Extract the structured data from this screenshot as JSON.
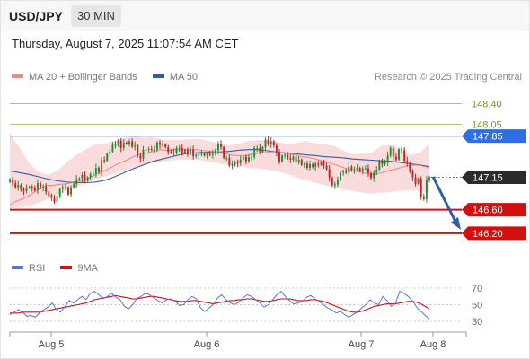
{
  "header": {
    "symbol": "USD/JPY",
    "timeframe": "30 MIN",
    "datetime": "Thursday, August 7, 2025 11:07:54 AM CET",
    "credit": "Research © 2025 Trading Central"
  },
  "colors": {
    "candle_up": "#1c8f34",
    "candle_down": "#c62020",
    "bollinger_fill": "#f9d0d0",
    "ma20": "#f08a8a",
    "ma50": "#2e5ea8",
    "green_level": "#a5c97a",
    "resistance": "#2f6fe0",
    "support": "#d31010",
    "rsi": "#5577d4",
    "rsi_ma": "#d31010",
    "arrow": "#2e5ea8"
  },
  "chart_data": [
    {
      "type": "candlestick",
      "title": "USD/JPY",
      "legend": [
        {
          "label": "MA 20 + Bollinger Bands",
          "color": "#f08a8a"
        },
        {
          "label": "MA 50",
          "color": "#2e5ea8"
        }
      ],
      "ylim": [
        146.0,
        148.53
      ],
      "x_ticks": [
        "Aug 5",
        "Aug 6",
        "Aug 7",
        "Aug 8"
      ],
      "levels": [
        {
          "value": 148.4,
          "label": "148.40",
          "kind": "green"
        },
        {
          "value": 148.05,
          "label": "148.05",
          "kind": "green"
        },
        {
          "value": 147.85,
          "label": "147.85",
          "kind": "resistance"
        },
        {
          "value": 147.15,
          "label": "147.15",
          "kind": "current"
        },
        {
          "value": 146.6,
          "label": "146.60",
          "kind": "support"
        },
        {
          "value": 146.2,
          "label": "146.20",
          "kind": "support"
        }
      ],
      "projection": {
        "from": 147.16,
        "to": 146.2
      },
      "closes": [
        147.12,
        147.05,
        146.98,
        147.02,
        146.94,
        146.92,
        146.97,
        146.99,
        146.96,
        146.93,
        147.05,
        146.98,
        146.99,
        146.9,
        146.84,
        146.8,
        146.73,
        146.83,
        146.95,
        146.98,
        146.98,
        146.86,
        146.98,
        147.03,
        147.12,
        147.13,
        147.19,
        147.09,
        147.15,
        147.2,
        147.21,
        147.31,
        147.24,
        147.44,
        147.43,
        147.55,
        147.59,
        147.7,
        147.7,
        147.77,
        147.65,
        147.74,
        147.72,
        147.76,
        147.67,
        147.69,
        147.52,
        147.47,
        147.62,
        147.62,
        147.63,
        147.62,
        147.62,
        147.74,
        147.7,
        147.71,
        147.66,
        147.58,
        147.57,
        147.57,
        147.65,
        147.65,
        147.56,
        147.62,
        147.55,
        147.62,
        147.51,
        147.53,
        147.55,
        147.55,
        147.52,
        147.55,
        147.53,
        147.55,
        147.61,
        147.72,
        147.66,
        147.48,
        147.48,
        147.35,
        147.37,
        147.41,
        147.39,
        147.45,
        147.5,
        147.42,
        147.49,
        147.49,
        147.65,
        147.65,
        147.58,
        147.66,
        147.79,
        147.71,
        147.76,
        147.69,
        147.57,
        147.42,
        147.52,
        147.53,
        147.47,
        147.45,
        147.5,
        147.41,
        147.45,
        147.36,
        147.38,
        147.31,
        147.37,
        147.33,
        147.38,
        147.36,
        147.41,
        147.35,
        147.29,
        147.14,
        147.02,
        147.03,
        147.1,
        147.23,
        147.25,
        147.23,
        147.33,
        147.28,
        147.29,
        147.31,
        147.25,
        147.3,
        147.3,
        147.22,
        147.14,
        147.23,
        147.28,
        147.43,
        147.37,
        147.4,
        147.52,
        147.65,
        147.5,
        147.45,
        147.63,
        147.61,
        147.43,
        147.39,
        147.25,
        147.15,
        147.04,
        147.13,
        146.82,
        146.78,
        147.1,
        147.15
      ],
      "ma20": [
        146.68,
        146.73,
        146.76,
        146.79,
        146.83,
        146.88,
        146.93,
        146.97,
        147.01,
        147.01,
        147.02,
        147.03,
        147.04,
        147.05,
        147.06,
        147.08,
        147.09,
        147.12,
        147.16,
        147.2,
        147.23,
        147.27,
        147.31,
        147.35,
        147.39,
        147.42,
        147.46,
        147.5,
        147.53,
        147.55,
        147.56,
        147.58,
        147.6,
        147.62,
        147.61,
        147.61,
        147.62,
        147.62,
        147.62,
        147.62,
        147.62,
        147.62,
        147.61,
        147.6,
        147.59,
        147.58,
        147.57,
        147.55,
        147.54,
        147.52,
        147.52,
        147.52,
        147.52,
        147.54,
        147.55,
        147.57,
        147.57,
        147.58,
        147.58,
        147.58,
        147.56,
        147.55,
        147.54,
        147.52,
        147.5,
        147.49,
        147.48,
        147.46,
        147.44,
        147.42,
        147.4,
        147.37,
        147.35,
        147.32,
        147.29,
        147.27,
        147.25,
        147.24,
        147.22,
        147.2,
        147.2,
        147.22,
        147.24,
        147.26,
        147.28,
        147.3,
        147.32,
        147.34,
        147.35,
        147.36,
        147.35,
        147.33,
        147.31
      ],
      "upper_band": [
        147.9,
        147.66,
        147.4,
        147.24,
        147.19,
        147.26,
        147.41,
        147.53,
        147.63,
        147.71,
        147.72,
        147.77,
        147.82,
        147.85,
        147.82,
        147.83,
        147.79,
        147.79,
        147.79,
        147.8,
        147.8,
        147.76,
        147.73,
        147.69,
        147.72,
        147.77,
        147.78,
        147.78,
        147.75,
        147.72,
        147.73,
        147.77,
        147.73,
        147.71,
        147.68,
        147.6,
        147.54,
        147.55,
        147.57,
        147.69,
        147.69,
        147.6,
        147.53,
        147.57,
        147.72
      ],
      "lower_band": [
        146.62,
        146.64,
        146.66,
        146.71,
        146.78,
        146.86,
        146.92,
        146.99,
        147.06,
        147.12,
        147.16,
        147.21,
        147.26,
        147.31,
        147.36,
        147.4,
        147.42,
        147.44,
        147.45,
        147.45,
        147.44,
        147.41,
        147.38,
        147.36,
        147.33,
        147.31,
        147.3,
        147.28,
        147.25,
        147.21,
        147.15,
        147.1,
        147.06,
        147.02,
        146.98,
        146.94,
        146.92,
        146.89,
        146.87,
        146.89,
        146.9,
        146.92,
        146.93,
        146.92,
        146.88
      ],
      "ma50": [
        147.26,
        147.23,
        147.2,
        147.16,
        147.12,
        147.09,
        147.07,
        147.06,
        147.06,
        147.07,
        147.1,
        147.16,
        147.23,
        147.3,
        147.36,
        147.42,
        147.46,
        147.5,
        147.54,
        147.56,
        147.57,
        147.58,
        147.58,
        147.59,
        147.61,
        147.62,
        147.62,
        147.6,
        147.58,
        147.56,
        147.55,
        147.53,
        147.52,
        147.5,
        147.49,
        147.48,
        147.46,
        147.45,
        147.44,
        147.43,
        147.42,
        147.4,
        147.38,
        147.36,
        147.33
      ]
    },
    {
      "type": "line",
      "title": "RSI",
      "legend": [
        {
          "label": "RSI",
          "color": "#5577d4"
        },
        {
          "label": "9MA",
          "color": "#d31010"
        }
      ],
      "y_ticks": [
        70,
        50,
        30
      ],
      "ylim": [
        20,
        80
      ],
      "rsi": [
        38,
        41,
        44,
        41,
        36,
        37,
        35,
        40,
        44,
        47,
        52,
        44,
        41,
        48,
        55,
        52,
        56,
        60,
        56,
        64,
        66,
        62,
        57,
        60,
        64,
        59,
        56,
        48,
        45,
        50,
        58,
        60,
        64,
        62,
        58,
        55,
        52,
        56,
        57,
        54,
        49,
        50,
        56,
        60,
        57,
        46,
        42,
        46,
        50,
        58,
        62,
        56,
        52,
        50,
        53,
        58,
        62,
        60,
        56,
        52,
        47,
        50,
        56,
        62,
        66,
        60,
        55,
        51,
        52,
        54,
        59,
        61,
        57,
        54,
        50,
        46,
        44,
        40,
        42,
        38,
        35,
        38,
        41,
        46,
        50,
        56,
        52,
        50,
        60,
        55,
        48,
        52,
        66,
        64,
        60,
        55,
        47,
        42,
        37,
        33
      ],
      "ma9": [
        40,
        40,
        40,
        41,
        41,
        41,
        41,
        41,
        42,
        43,
        44,
        45,
        46,
        47,
        48,
        49,
        50,
        51,
        52,
        54,
        56,
        57,
        58,
        59,
        60,
        61,
        60,
        59,
        58,
        57,
        57,
        58,
        59,
        60,
        60,
        59,
        58,
        57,
        56,
        55,
        54,
        54,
        54,
        55,
        55,
        54,
        53,
        52,
        51,
        52,
        53,
        54,
        55,
        55,
        56,
        56,
        57,
        57,
        56,
        55,
        54,
        54,
        55,
        56,
        57,
        57,
        57,
        56,
        55,
        55,
        55,
        56,
        56,
        55,
        54,
        52,
        50,
        48,
        46,
        44,
        42,
        41,
        41,
        42,
        44,
        46,
        48,
        49,
        50,
        51,
        51,
        51,
        52,
        53,
        54,
        54,
        53,
        51,
        48,
        45
      ]
    }
  ]
}
